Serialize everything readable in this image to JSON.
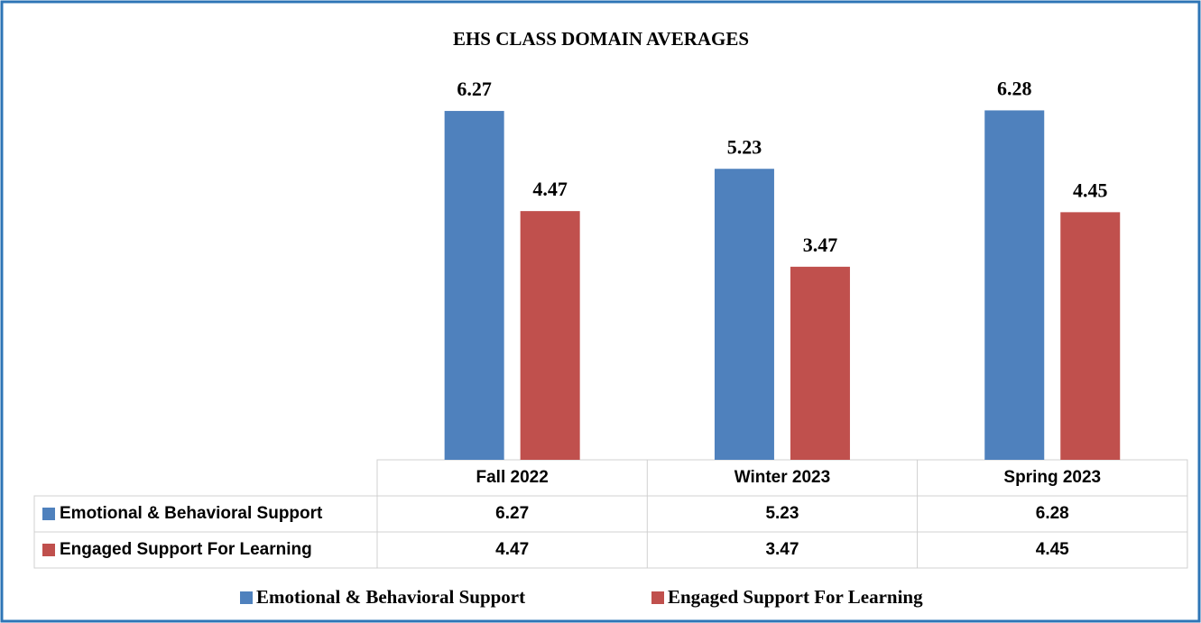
{
  "chart_data": {
    "type": "bar",
    "title": "EHS CLASS DOMAIN AVERAGES",
    "categories": [
      "Fall 2022",
      "Winter 2023",
      "Spring 2023"
    ],
    "series": [
      {
        "name": "Emotional & Behavioral Support",
        "color": "#4f81bd",
        "values": [
          6.27,
          5.23,
          6.28
        ]
      },
      {
        "name": "Engaged Support For Learning",
        "color": "#c0504d",
        "values": [
          4.47,
          3.47,
          4.45
        ]
      }
    ],
    "ylim": [
      0,
      7
    ]
  }
}
